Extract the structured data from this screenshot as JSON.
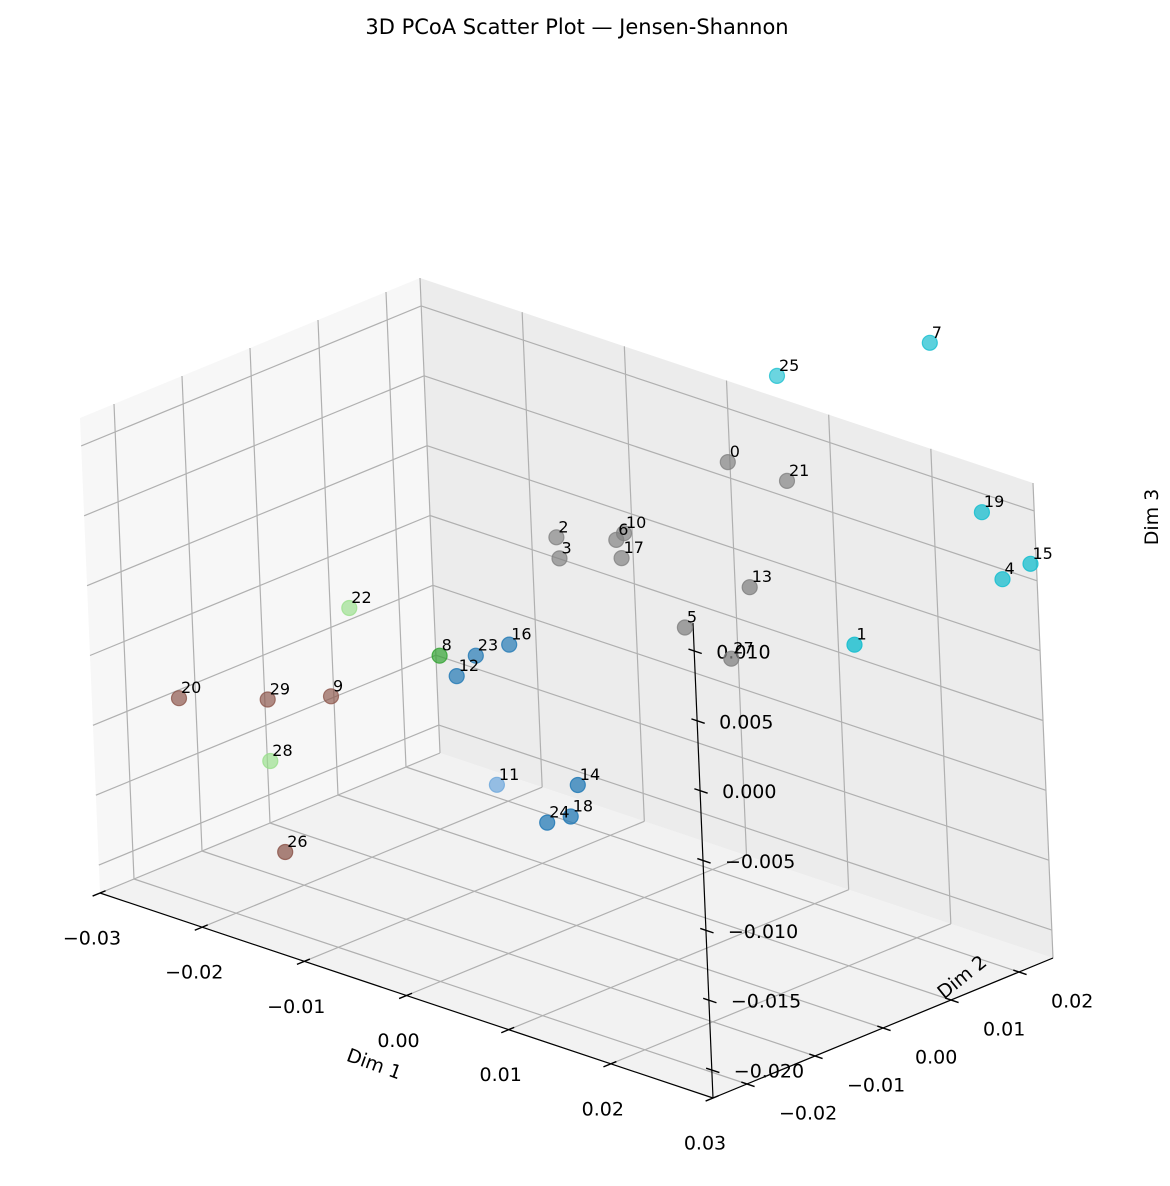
{
  "chart_data": {
    "type": "scatter",
    "projection": "3d",
    "title": "3D PCoA Scatter Plot — Jensen-Shannon",
    "xlabel": "Dim 1",
    "ylabel": "Dim 2",
    "zlabel": "Dim 3",
    "xlim": [
      -0.03,
      0.03
    ],
    "ylim": [
      -0.025,
      0.025
    ],
    "zlim": [
      -0.022,
      0.012
    ],
    "xticks": [
      -0.03,
      -0.02,
      -0.01,
      0.0,
      0.01,
      0.02,
      0.03
    ],
    "xtick_labels": [
      "−0.03",
      "−0.02",
      "−0.01",
      "0.00",
      "0.01",
      "0.02",
      "0.03"
    ],
    "yticks": [
      -0.02,
      -0.01,
      0.0,
      0.01,
      0.02
    ],
    "ytick_labels": [
      "−0.02",
      "−0.01",
      "0.00",
      "0.01",
      "0.02"
    ],
    "zticks": [
      -0.02,
      -0.015,
      -0.01,
      -0.005,
      0.0,
      0.005,
      0.01
    ],
    "ztick_labels": [
      "−0.020",
      "−0.015",
      "−0.010",
      "−0.005",
      "0.000",
      "0.005",
      "0.010"
    ],
    "grid": true,
    "colors": {
      "gray": "#7f7f7f",
      "cyan": "#17becf",
      "blue": "#1f77b4",
      "light_blue": "#6fa8dc",
      "green": "#2ca02c",
      "light_green": "#98df8a",
      "brown": "#8c564b"
    },
    "points": [
      {
        "label": "0",
        "x": 0.0035,
        "y": 0.0196,
        "z": 0.0081,
        "color": "gray"
      },
      {
        "label": "1",
        "x": 0.0287,
        "y": 0.0001,
        "z": 0.0051,
        "color": "cyan"
      },
      {
        "label": "2",
        "x": -0.0082,
        "y": 0.0114,
        "z": 0.0015,
        "color": "gray"
      },
      {
        "label": "3",
        "x": -0.0075,
        "y": 0.0107,
        "z": 0.0003,
        "color": "gray"
      },
      {
        "label": "4",
        "x": 0.0309,
        "y": 0.0187,
        "z": 0.0066,
        "color": "cyan"
      },
      {
        "label": "5",
        "x": 0.0048,
        "y": 0.0105,
        "z": -0.0016,
        "color": "gray"
      },
      {
        "label": "6",
        "x": -0.0035,
        "y": 0.0132,
        "z": 0.0021,
        "color": "gray"
      },
      {
        "label": "7",
        "x": 0.0202,
        "y": 0.0252,
        "z": 0.0196,
        "color": "cyan"
      },
      {
        "label": "8",
        "x": -0.0137,
        "y": 0.0018,
        "z": -0.0064,
        "color": "green"
      },
      {
        "label": "9",
        "x": -0.0217,
        "y": -0.0025,
        "z": -0.0104,
        "color": "brown"
      },
      {
        "label": "10",
        "x": -0.0034,
        "y": 0.0142,
        "z": 0.0024,
        "color": "gray"
      },
      {
        "label": "11",
        "x": -0.0056,
        "y": -0.0025,
        "z": -0.0128,
        "color": "light_blue"
      },
      {
        "label": "12",
        "x": -0.0114,
        "y": 0.0008,
        "z": -0.0071,
        "color": "blue"
      },
      {
        "label": "13",
        "x": 0.0114,
        "y": 0.0105,
        "z": 0.0029,
        "color": "gray"
      },
      {
        "label": "14",
        "x": 0.0001,
        "y": 0.0009,
        "z": -0.0121,
        "color": "blue"
      },
      {
        "label": "15",
        "x": 0.0345,
        "y": 0.0176,
        "z": 0.0088,
        "color": "cyan"
      },
      {
        "label": "16",
        "x": -0.0086,
        "y": 0.0045,
        "z": -0.0049,
        "color": "blue"
      },
      {
        "label": "17",
        "x": -0.0025,
        "y": 0.0124,
        "z": 0.0012,
        "color": "gray"
      },
      {
        "label": "18",
        "x": 0.0018,
        "y": -0.0028,
        "z": -0.0132,
        "color": "blue"
      },
      {
        "label": "19",
        "x": 0.0292,
        "y": 0.0186,
        "z": 0.011,
        "color": "cyan"
      },
      {
        "label": "20",
        "x": -0.0291,
        "y": -0.0137,
        "z": -0.0101,
        "color": "brown"
      },
      {
        "label": "21",
        "x": 0.0073,
        "y": 0.0225,
        "z": 0.0071,
        "color": "gray"
      },
      {
        "label": "22",
        "x": -0.0213,
        "y": 0.0001,
        "z": -0.0045,
        "color": "light_green"
      },
      {
        "label": "23",
        "x": -0.011,
        "y": 0.0031,
        "z": -0.006,
        "color": "blue"
      },
      {
        "label": "24",
        "x": -0.0011,
        "y": -0.002,
        "z": -0.0145,
        "color": "blue"
      },
      {
        "label": "25",
        "x": 0.0038,
        "y": 0.0268,
        "z": 0.0129,
        "color": "cyan"
      },
      {
        "label": "26",
        "x": -0.0181,
        "y": -0.0153,
        "z": -0.0181,
        "color": "brown"
      },
      {
        "label": "27",
        "x": 0.0114,
        "y": 0.0074,
        "z": -0.0016,
        "color": "gray"
      },
      {
        "label": "28",
        "x": -0.0247,
        "y": -0.0073,
        "z": -0.0148,
        "color": "light_green"
      },
      {
        "label": "29",
        "x": -0.0247,
        "y": -0.0073,
        "z": -0.0104,
        "color": "brown"
      }
    ]
  }
}
